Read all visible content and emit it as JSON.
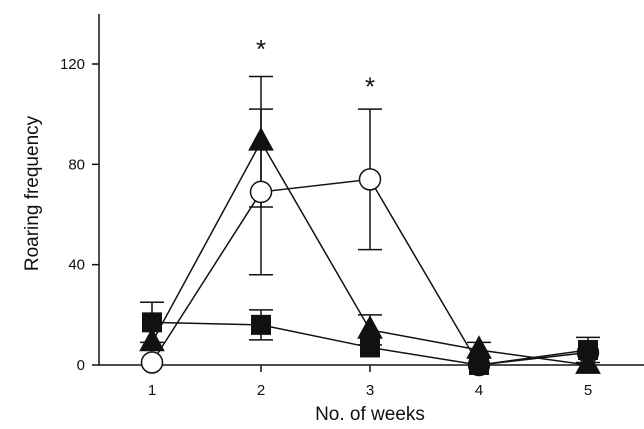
{
  "chart_data": {
    "type": "line",
    "xlabel": "No. of weeks",
    "ylabel": "Roaring frequency",
    "x": [
      1,
      2,
      3,
      4,
      5
    ],
    "x_tick_labels": [
      "1",
      "2",
      "3",
      "4",
      "5"
    ],
    "ylim": [
      0,
      140
    ],
    "y_ticks": [
      0,
      40,
      80,
      120
    ],
    "y_tick_labels": [
      "0",
      "40",
      "80",
      "120"
    ],
    "grid": false,
    "legend": "none",
    "series": [
      {
        "marker": "open-circle",
        "values": [
          1,
          69,
          74,
          0,
          5
        ],
        "error": [
          [
            0,
            0
          ],
          [
            33,
            33
          ],
          [
            28,
            28
          ],
          [
            0,
            0
          ],
          [
            0,
            0
          ]
        ]
      },
      {
        "marker": "filled-triangle",
        "values": [
          9,
          89,
          14,
          6,
          0
        ],
        "error": [
          [
            0,
            0
          ],
          [
            26,
            26
          ],
          [
            6,
            6
          ],
          [
            3,
            3
          ],
          [
            0,
            0
          ]
        ]
      },
      {
        "marker": "filled-square",
        "values": [
          17,
          16,
          7,
          0,
          6
        ],
        "error": [
          [
            8,
            8
          ],
          [
            6,
            6
          ],
          [
            0,
            0
          ],
          [
            0,
            0
          ],
          [
            5,
            5
          ]
        ]
      }
    ],
    "annotations": [
      {
        "text": "*",
        "x": 2,
        "y": 128
      },
      {
        "text": "*",
        "x": 3,
        "y": 113
      }
    ],
    "colors": {
      "ink": "#111111",
      "background": "#ffffff"
    }
  }
}
